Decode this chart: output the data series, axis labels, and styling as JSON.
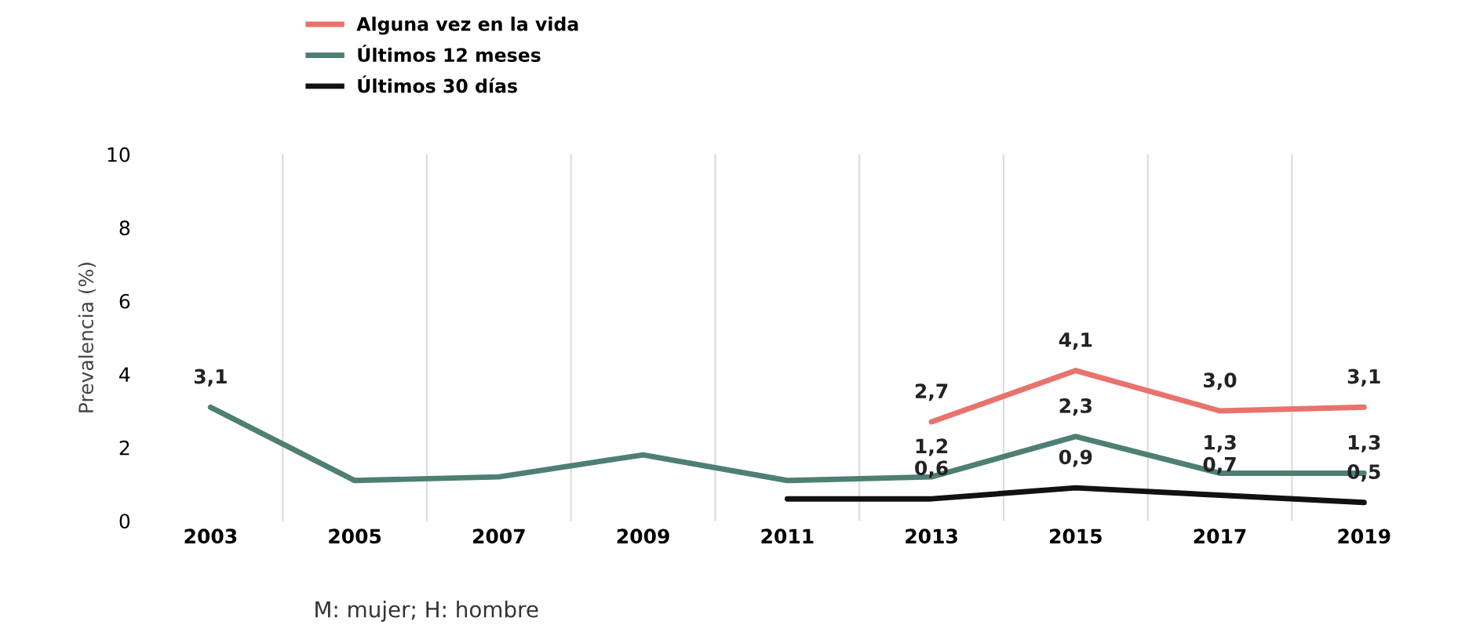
{
  "chart_data": {
    "type": "line",
    "ylabel": "Prevalencia (%)",
    "categories": [
      "2003",
      "2005",
      "2007",
      "2009",
      "2011",
      "2013",
      "2015",
      "2017",
      "2019"
    ],
    "series": [
      {
        "name": "Alguna vez en la vida",
        "color": "#e8736c",
        "values": [
          null,
          null,
          null,
          null,
          null,
          2.7,
          4.1,
          3.0,
          3.1
        ],
        "value_labels": [
          null,
          null,
          null,
          null,
          null,
          "2,7",
          "4,1",
          "3,0",
          "3,1"
        ]
      },
      {
        "name": "Últimos 12 meses",
        "color": "#4e7f74",
        "values": [
          3.1,
          1.1,
          1.2,
          1.8,
          1.1,
          1.2,
          2.3,
          1.3,
          1.3
        ],
        "value_labels": [
          "3,1",
          null,
          null,
          null,
          null,
          "1,2",
          "2,3",
          "1,3",
          "1,3"
        ]
      },
      {
        "name": "Últimos 30 días",
        "color": "#111111",
        "values": [
          null,
          null,
          null,
          null,
          0.6,
          0.6,
          0.9,
          0.7,
          0.5
        ],
        "value_labels": [
          null,
          null,
          null,
          null,
          null,
          "0,6",
          "0,9",
          "0,7",
          "0,5"
        ]
      }
    ],
    "ylim": [
      0,
      10
    ],
    "yticks": [
      0,
      2,
      4,
      6,
      8,
      10
    ],
    "grid": "x",
    "legend": "top left",
    "marker": "none",
    "line_style": "solid",
    "annotations": [
      "M: mujer; H: hombre"
    ]
  }
}
